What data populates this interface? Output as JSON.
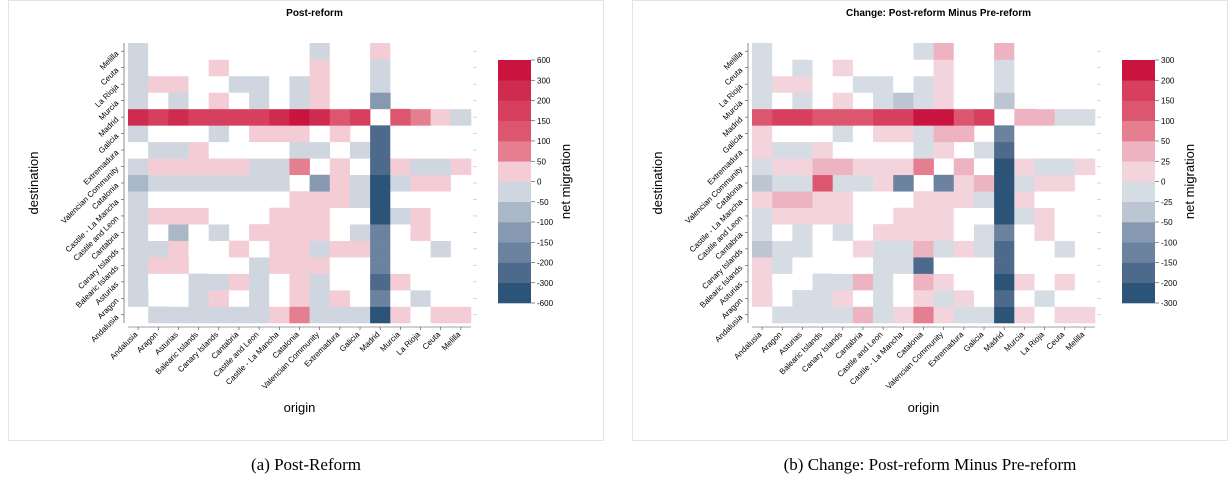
{
  "chart_data": [
    {
      "type": "heatmap",
      "title": "Post-reform",
      "caption": "(a) Post-Reform",
      "x_label": "origin",
      "y_label": "destination",
      "colorbar_label": "net migration",
      "categories": [
        "Andalusia",
        "Aragon",
        "Asturias",
        "Balearic Islands",
        "Canary Islands",
        "Cantabria",
        "Castile and Leon",
        "Castile - La Mancha",
        "Catalonia",
        "Valencian Community",
        "Extremadura",
        "Galicia",
        "Madrid",
        "Murcia",
        "La Rioja",
        "Ceuta",
        "Melilla"
      ],
      "y_categories": [
        "Andalusia",
        "Aragon",
        "Asturias",
        "Balearic Islands",
        "Canary Islands",
        "Cantabria",
        "Castile and Leon",
        "Castile - La Mancha",
        "Catalonia",
        "Valencian Community",
        "Extremadura",
        "Galicia",
        "Madrid",
        "Murcia",
        "La Rioja",
        "Ceuta",
        "Melilla"
      ],
      "values": [
        [
          null,
          -10,
          -10,
          -10,
          -10,
          -10,
          -10,
          20,
          60,
          -10,
          -10,
          -10,
          -500,
          20,
          0,
          20,
          20
        ],
        [
          -10,
          null,
          0,
          -10,
          20,
          0,
          -10,
          0,
          20,
          -10,
          20,
          0,
          -150,
          0,
          -10,
          0,
          0
        ],
        [
          -10,
          0,
          null,
          -10,
          -10,
          30,
          -10,
          0,
          30,
          -10,
          0,
          0,
          -250,
          20,
          0,
          0,
          0
        ],
        [
          -10,
          20,
          20,
          null,
          0,
          0,
          -10,
          20,
          30,
          20,
          0,
          0,
          -150,
          0,
          0,
          0,
          0
        ],
        [
          -10,
          -10,
          20,
          0,
          null,
          20,
          0,
          20,
          30,
          -10,
          20,
          20,
          -150,
          0,
          0,
          -10,
          0
        ],
        [
          -10,
          0,
          -50,
          0,
          -10,
          null,
          20,
          20,
          30,
          20,
          0,
          -10,
          -150,
          0,
          20,
          0,
          0
        ],
        [
          -10,
          20,
          20,
          20,
          0,
          0,
          null,
          20,
          20,
          20,
          0,
          0,
          -300,
          -10,
          20,
          0,
          0
        ],
        [
          -10,
          0,
          0,
          0,
          0,
          0,
          0,
          null,
          20,
          20,
          20,
          -10,
          -350,
          0,
          0,
          0,
          0
        ],
        [
          -60,
          -10,
          -10,
          -10,
          -10,
          -10,
          -10,
          -10,
          null,
          -100,
          20,
          -10,
          -500,
          -10,
          20,
          20,
          0
        ],
        [
          -10,
          20,
          30,
          20,
          20,
          20,
          -10,
          -10,
          80,
          null,
          20,
          0,
          -250,
          20,
          -10,
          -10,
          20
        ],
        [
          0,
          -10,
          -10,
          20,
          0,
          0,
          0,
          0,
          -10,
          -10,
          null,
          -10,
          -200,
          0,
          0,
          0,
          0
        ],
        [
          -10,
          0,
          0,
          0,
          -10,
          0,
          20,
          20,
          20,
          0,
          20,
          null,
          -250,
          0,
          0,
          0,
          0
        ],
        [
          250,
          180,
          230,
          200,
          170,
          180,
          200,
          250,
          350,
          220,
          150,
          180,
          null,
          130,
          60,
          40,
          -10
        ],
        [
          -10,
          0,
          -10,
          0,
          20,
          0,
          -10,
          0,
          -10,
          20,
          0,
          0,
          -120,
          null,
          0,
          0,
          0
        ],
        [
          -10,
          20,
          20,
          0,
          0,
          -10,
          -10,
          0,
          -10,
          20,
          0,
          0,
          -20,
          0,
          null,
          0,
          0
        ],
        [
          -10,
          0,
          0,
          0,
          20,
          0,
          0,
          0,
          0,
          20,
          0,
          0,
          -10,
          0,
          0,
          null,
          0
        ],
        [
          -10,
          0,
          0,
          0,
          0,
          0,
          0,
          0,
          0,
          -10,
          0,
          0,
          20,
          0,
          0,
          0,
          null
        ]
      ],
      "colorbar_ticks": [
        -600,
        -300,
        -200,
        -150,
        -100,
        -50,
        0,
        50,
        100,
        150,
        200,
        300,
        600
      ],
      "colors": [
        "#2c5378",
        "#4d6a8c",
        "#6c83a0",
        "#8799b0",
        "#a9b7c6",
        "#cfd6df",
        "#f3ccd6",
        "#e57e91",
        "#dc566f",
        "#d63f5e",
        "#cf2a4f",
        "#c8143f"
      ],
      "zero_color": "#ffffff"
    },
    {
      "type": "heatmap",
      "title": "Change: Post-reform Minus Pre-reform",
      "caption": "(b) Change: Post-reform Minus Pre-reform",
      "x_label": "origin",
      "y_label": "destination",
      "colorbar_label": "net migration",
      "categories": [
        "Andalusia",
        "Aragon",
        "Asturias",
        "Balearic Islands",
        "Canary Islands",
        "Cantabria",
        "Castile and Leon",
        "Castile - La Mancha",
        "Catalonia",
        "Valencian Community",
        "Extremadura",
        "Galicia",
        "Madrid",
        "Murcia",
        "La Rioja",
        "Ceuta",
        "Melilla"
      ],
      "y_categories": [
        "Andalusia",
        "Aragon",
        "Asturias",
        "Balearic Islands",
        "Canary Islands",
        "Cantabria",
        "Castile and Leon",
        "Castile - La Mancha",
        "Catalonia",
        "Valencian Community",
        "Extremadura",
        "Galicia",
        "Madrid",
        "Murcia",
        "La Rioja",
        "Ceuta",
        "Melilla"
      ],
      "values": [
        [
          null,
          -10,
          -10,
          -10,
          -10,
          30,
          -10,
          20,
          80,
          20,
          -10,
          -10,
          -250,
          20,
          0,
          20,
          20
        ],
        [
          20,
          null,
          -10,
          -10,
          20,
          0,
          -10,
          0,
          20,
          -10,
          20,
          0,
          -150,
          0,
          -10,
          0,
          0
        ],
        [
          20,
          0,
          null,
          -10,
          -10,
          30,
          -10,
          0,
          30,
          20,
          0,
          0,
          -200,
          20,
          0,
          20,
          0
        ],
        [
          20,
          -10,
          0,
          null,
          0,
          0,
          -10,
          -10,
          -150,
          0,
          0,
          0,
          -150,
          0,
          0,
          0,
          0
        ],
        [
          -30,
          -10,
          -10,
          0,
          null,
          20,
          -10,
          -10,
          30,
          -10,
          20,
          -10,
          -150,
          0,
          0,
          -10,
          0
        ],
        [
          -10,
          0,
          -10,
          0,
          -10,
          null,
          20,
          20,
          20,
          20,
          0,
          -10,
          -100,
          0,
          20,
          0,
          0
        ],
        [
          -10,
          20,
          20,
          20,
          20,
          0,
          null,
          20,
          20,
          20,
          0,
          0,
          -200,
          -10,
          20,
          0,
          0
        ],
        [
          20,
          40,
          40,
          20,
          20,
          0,
          0,
          null,
          20,
          20,
          20,
          -10,
          -200,
          20,
          0,
          0,
          0
        ],
        [
          -40,
          -10,
          -10,
          120,
          -10,
          -10,
          20,
          -100,
          null,
          -100,
          20,
          40,
          -250,
          -10,
          20,
          20,
          0
        ],
        [
          -10,
          20,
          20,
          30,
          30,
          20,
          20,
          20,
          80,
          null,
          30,
          0,
          -250,
          20,
          -10,
          -10,
          20
        ],
        [
          20,
          -10,
          -10,
          20,
          0,
          0,
          0,
          0,
          -10,
          20,
          null,
          -10,
          -150,
          0,
          0,
          0,
          0
        ],
        [
          20,
          0,
          0,
          0,
          -10,
          0,
          20,
          20,
          -10,
          30,
          30,
          null,
          -100,
          0,
          0,
          0,
          0
        ],
        [
          150,
          160,
          170,
          150,
          150,
          120,
          200,
          160,
          250,
          220,
          130,
          180,
          null,
          40,
          40,
          -10,
          -10
        ],
        [
          -10,
          0,
          -10,
          0,
          20,
          0,
          -10,
          -30,
          -10,
          20,
          0,
          0,
          -30,
          null,
          0,
          0,
          0
        ],
        [
          -10,
          20,
          20,
          0,
          0,
          -10,
          -10,
          0,
          -10,
          20,
          0,
          0,
          -20,
          0,
          null,
          0,
          0
        ],
        [
          -10,
          0,
          -10,
          0,
          20,
          0,
          0,
          0,
          0,
          20,
          0,
          0,
          -10,
          0,
          0,
          null,
          0
        ],
        [
          -10,
          0,
          0,
          0,
          0,
          0,
          0,
          0,
          -10,
          30,
          0,
          0,
          30,
          0,
          0,
          0,
          null
        ]
      ],
      "colorbar_ticks": [
        -300,
        -200,
        -150,
        -100,
        -50,
        -25,
        0,
        25,
        50,
        100,
        150,
        200,
        300
      ],
      "colors": [
        "#2c5378",
        "#4d6a8c",
        "#6c83a0",
        "#8799b0",
        "#bcc6d3",
        "#d6dce4",
        "#f3d3dc",
        "#eeb3c1",
        "#e57e91",
        "#dc566f",
        "#d63f5e",
        "#c8143f"
      ],
      "zero_color": "#ffffff"
    }
  ]
}
